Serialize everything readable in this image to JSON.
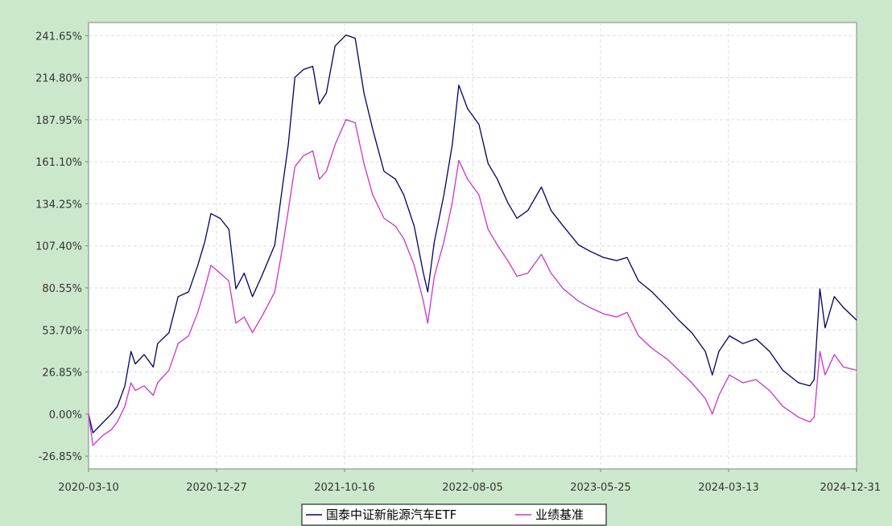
{
  "chart_data": {
    "type": "line",
    "title": "",
    "xlabel": "",
    "ylabel": "",
    "x_ticks": [
      "2020-03-10",
      "2020-12-27",
      "2021-10-16",
      "2022-08-05",
      "2023-05-25",
      "2024-03-13",
      "2024-12-31"
    ],
    "y_ticks": [
      "-26.85%",
      "0.00%",
      "26.85%",
      "53.70%",
      "80.55%",
      "107.40%",
      "134.25%",
      "161.10%",
      "187.95%",
      "214.80%",
      "241.65%"
    ],
    "ylim": [
      -35,
      250
    ],
    "xlim": [
      "2020-03-10",
      "2024-12-31"
    ],
    "grid": true,
    "legend_position": "bottom",
    "series": [
      {
        "name": "国泰中证新能源汽车ETF",
        "color": "#000066",
        "points": [
          [
            "2020-03-10",
            0
          ],
          [
            "2020-03-20",
            -12
          ],
          [
            "2020-04-10",
            -6
          ],
          [
            "2020-05-01",
            0
          ],
          [
            "2020-05-15",
            5
          ],
          [
            "2020-06-01",
            18
          ],
          [
            "2020-06-15",
            40
          ],
          [
            "2020-06-25",
            32
          ],
          [
            "2020-07-15",
            38
          ],
          [
            "2020-08-05",
            30
          ],
          [
            "2020-08-15",
            45
          ],
          [
            "2020-09-10",
            52
          ],
          [
            "2020-10-01",
            75
          ],
          [
            "2020-10-25",
            78
          ],
          [
            "2020-11-15",
            95
          ],
          [
            "2020-12-01",
            110
          ],
          [
            "2020-12-15",
            128
          ],
          [
            "2021-01-05",
            125
          ],
          [
            "2021-01-25",
            118
          ],
          [
            "2021-02-10",
            80
          ],
          [
            "2021-03-01",
            90
          ],
          [
            "2021-03-20",
            75
          ],
          [
            "2021-04-10",
            88
          ],
          [
            "2021-05-10",
            108
          ],
          [
            "2021-05-25",
            140
          ],
          [
            "2021-06-10",
            172
          ],
          [
            "2021-06-25",
            215
          ],
          [
            "2021-07-15",
            220
          ],
          [
            "2021-08-05",
            222
          ],
          [
            "2021-08-20",
            198
          ],
          [
            "2021-09-05",
            205
          ],
          [
            "2021-09-25",
            235
          ],
          [
            "2021-10-20",
            242
          ],
          [
            "2021-11-10",
            240
          ],
          [
            "2021-11-30",
            205
          ],
          [
            "2021-12-20",
            182
          ],
          [
            "2022-01-15",
            155
          ],
          [
            "2022-02-10",
            150
          ],
          [
            "2022-03-01",
            140
          ],
          [
            "2022-03-25",
            120
          ],
          [
            "2022-04-15",
            90
          ],
          [
            "2022-04-25",
            78
          ],
          [
            "2022-05-10",
            110
          ],
          [
            "2022-06-01",
            140
          ],
          [
            "2022-06-20",
            172
          ],
          [
            "2022-07-05",
            210
          ],
          [
            "2022-07-25",
            195
          ],
          [
            "2022-08-20",
            185
          ],
          [
            "2022-09-10",
            160
          ],
          [
            "2022-10-01",
            150
          ],
          [
            "2022-10-25",
            135
          ],
          [
            "2022-11-15",
            125
          ],
          [
            "2022-12-10",
            130
          ],
          [
            "2023-01-10",
            145
          ],
          [
            "2023-02-01",
            130
          ],
          [
            "2023-03-01",
            120
          ],
          [
            "2023-04-05",
            108
          ],
          [
            "2023-05-01",
            104
          ],
          [
            "2023-06-01",
            100
          ],
          [
            "2023-07-01",
            98
          ],
          [
            "2023-07-25",
            100
          ],
          [
            "2023-08-20",
            85
          ],
          [
            "2023-09-20",
            78
          ],
          [
            "2023-10-25",
            68
          ],
          [
            "2023-11-20",
            60
          ],
          [
            "2023-12-20",
            52
          ],
          [
            "2024-01-20",
            40
          ],
          [
            "2024-02-05",
            25
          ],
          [
            "2024-02-20",
            40
          ],
          [
            "2024-03-15",
            50
          ],
          [
            "2024-04-15",
            45
          ],
          [
            "2024-05-15",
            48
          ],
          [
            "2024-06-15",
            40
          ],
          [
            "2024-07-15",
            28
          ],
          [
            "2024-08-20",
            20
          ],
          [
            "2024-09-15",
            18
          ],
          [
            "2024-09-25",
            22
          ],
          [
            "2024-10-08",
            80
          ],
          [
            "2024-10-20",
            55
          ],
          [
            "2024-11-10",
            75
          ],
          [
            "2024-12-01",
            68
          ],
          [
            "2024-12-31",
            60
          ]
        ]
      },
      {
        "name": "业绩基准",
        "color": "#cc33cc",
        "points": [
          [
            "2020-03-10",
            0
          ],
          [
            "2020-03-20",
            -20
          ],
          [
            "2020-04-10",
            -14
          ],
          [
            "2020-05-01",
            -10
          ],
          [
            "2020-05-15",
            -5
          ],
          [
            "2020-06-01",
            5
          ],
          [
            "2020-06-15",
            20
          ],
          [
            "2020-06-25",
            15
          ],
          [
            "2020-07-15",
            18
          ],
          [
            "2020-08-05",
            12
          ],
          [
            "2020-08-15",
            20
          ],
          [
            "2020-09-10",
            28
          ],
          [
            "2020-10-01",
            45
          ],
          [
            "2020-10-25",
            50
          ],
          [
            "2020-11-15",
            65
          ],
          [
            "2020-12-01",
            80
          ],
          [
            "2020-12-15",
            95
          ],
          [
            "2021-01-05",
            90
          ],
          [
            "2021-01-25",
            85
          ],
          [
            "2021-02-10",
            58
          ],
          [
            "2021-03-01",
            62
          ],
          [
            "2021-03-20",
            52
          ],
          [
            "2021-04-10",
            62
          ],
          [
            "2021-05-10",
            78
          ],
          [
            "2021-05-25",
            102
          ],
          [
            "2021-06-10",
            130
          ],
          [
            "2021-06-25",
            158
          ],
          [
            "2021-07-15",
            165
          ],
          [
            "2021-08-05",
            168
          ],
          [
            "2021-08-20",
            150
          ],
          [
            "2021-09-05",
            155
          ],
          [
            "2021-09-25",
            172
          ],
          [
            "2021-10-20",
            188
          ],
          [
            "2021-11-10",
            186
          ],
          [
            "2021-11-30",
            160
          ],
          [
            "2021-12-20",
            140
          ],
          [
            "2022-01-15",
            125
          ],
          [
            "2022-02-10",
            120
          ],
          [
            "2022-03-01",
            112
          ],
          [
            "2022-03-25",
            95
          ],
          [
            "2022-04-15",
            72
          ],
          [
            "2022-04-25",
            58
          ],
          [
            "2022-05-10",
            88
          ],
          [
            "2022-06-01",
            110
          ],
          [
            "2022-06-20",
            135
          ],
          [
            "2022-07-05",
            162
          ],
          [
            "2022-07-25",
            150
          ],
          [
            "2022-08-20",
            140
          ],
          [
            "2022-09-10",
            118
          ],
          [
            "2022-10-01",
            108
          ],
          [
            "2022-10-25",
            98
          ],
          [
            "2022-11-15",
            88
          ],
          [
            "2022-12-10",
            90
          ],
          [
            "2023-01-10",
            102
          ],
          [
            "2023-02-01",
            90
          ],
          [
            "2023-03-01",
            80
          ],
          [
            "2023-04-05",
            72
          ],
          [
            "2023-05-01",
            68
          ],
          [
            "2023-06-01",
            64
          ],
          [
            "2023-07-01",
            62
          ],
          [
            "2023-07-25",
            65
          ],
          [
            "2023-08-20",
            50
          ],
          [
            "2023-09-20",
            42
          ],
          [
            "2023-10-25",
            35
          ],
          [
            "2023-11-20",
            28
          ],
          [
            "2023-12-20",
            20
          ],
          [
            "2024-01-20",
            10
          ],
          [
            "2024-02-05",
            0
          ],
          [
            "2024-02-20",
            12
          ],
          [
            "2024-03-15",
            25
          ],
          [
            "2024-04-15",
            20
          ],
          [
            "2024-05-15",
            22
          ],
          [
            "2024-06-15",
            15
          ],
          [
            "2024-07-15",
            5
          ],
          [
            "2024-08-20",
            -2
          ],
          [
            "2024-09-15",
            -5
          ],
          [
            "2024-09-25",
            -2
          ],
          [
            "2024-10-08",
            40
          ],
          [
            "2024-10-20",
            25
          ],
          [
            "2024-11-10",
            38
          ],
          [
            "2024-12-01",
            30
          ],
          [
            "2024-12-31",
            28
          ]
        ]
      }
    ]
  }
}
